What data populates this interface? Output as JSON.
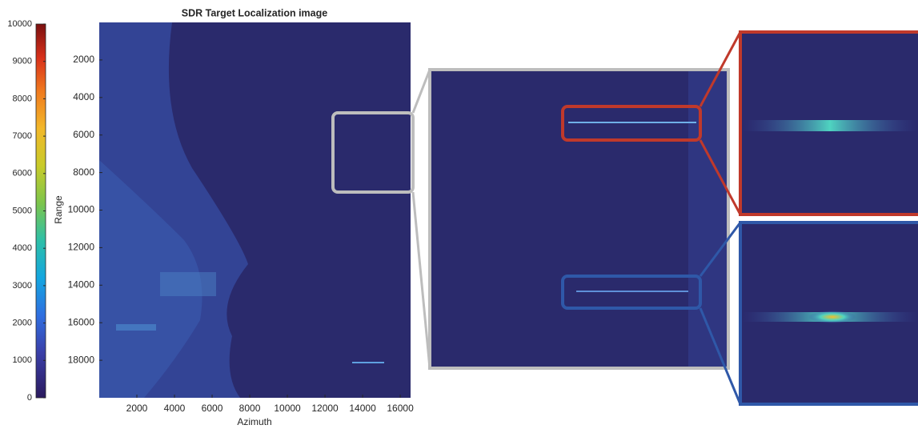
{
  "chart_data": {
    "type": "image",
    "title": "SDR Target Localization image",
    "xlabel": "Azimuth",
    "ylabel": "Range",
    "xlim": [
      0,
      16550
    ],
    "xticks": [
      2000,
      4000,
      6000,
      8000,
      10000,
      12000,
      14000,
      16000
    ],
    "ylim": [
      0,
      20000
    ],
    "yticks": [
      2000,
      4000,
      6000,
      8000,
      10000,
      12000,
      14000,
      16000,
      18000
    ],
    "y_reversed": true,
    "colorbar": {
      "lim": [
        0,
        10000
      ],
      "ticks": [
        0,
        1000,
        2000,
        3000,
        4000,
        5000,
        6000,
        7000,
        8000,
        9000,
        10000
      ]
    }
  }
}
